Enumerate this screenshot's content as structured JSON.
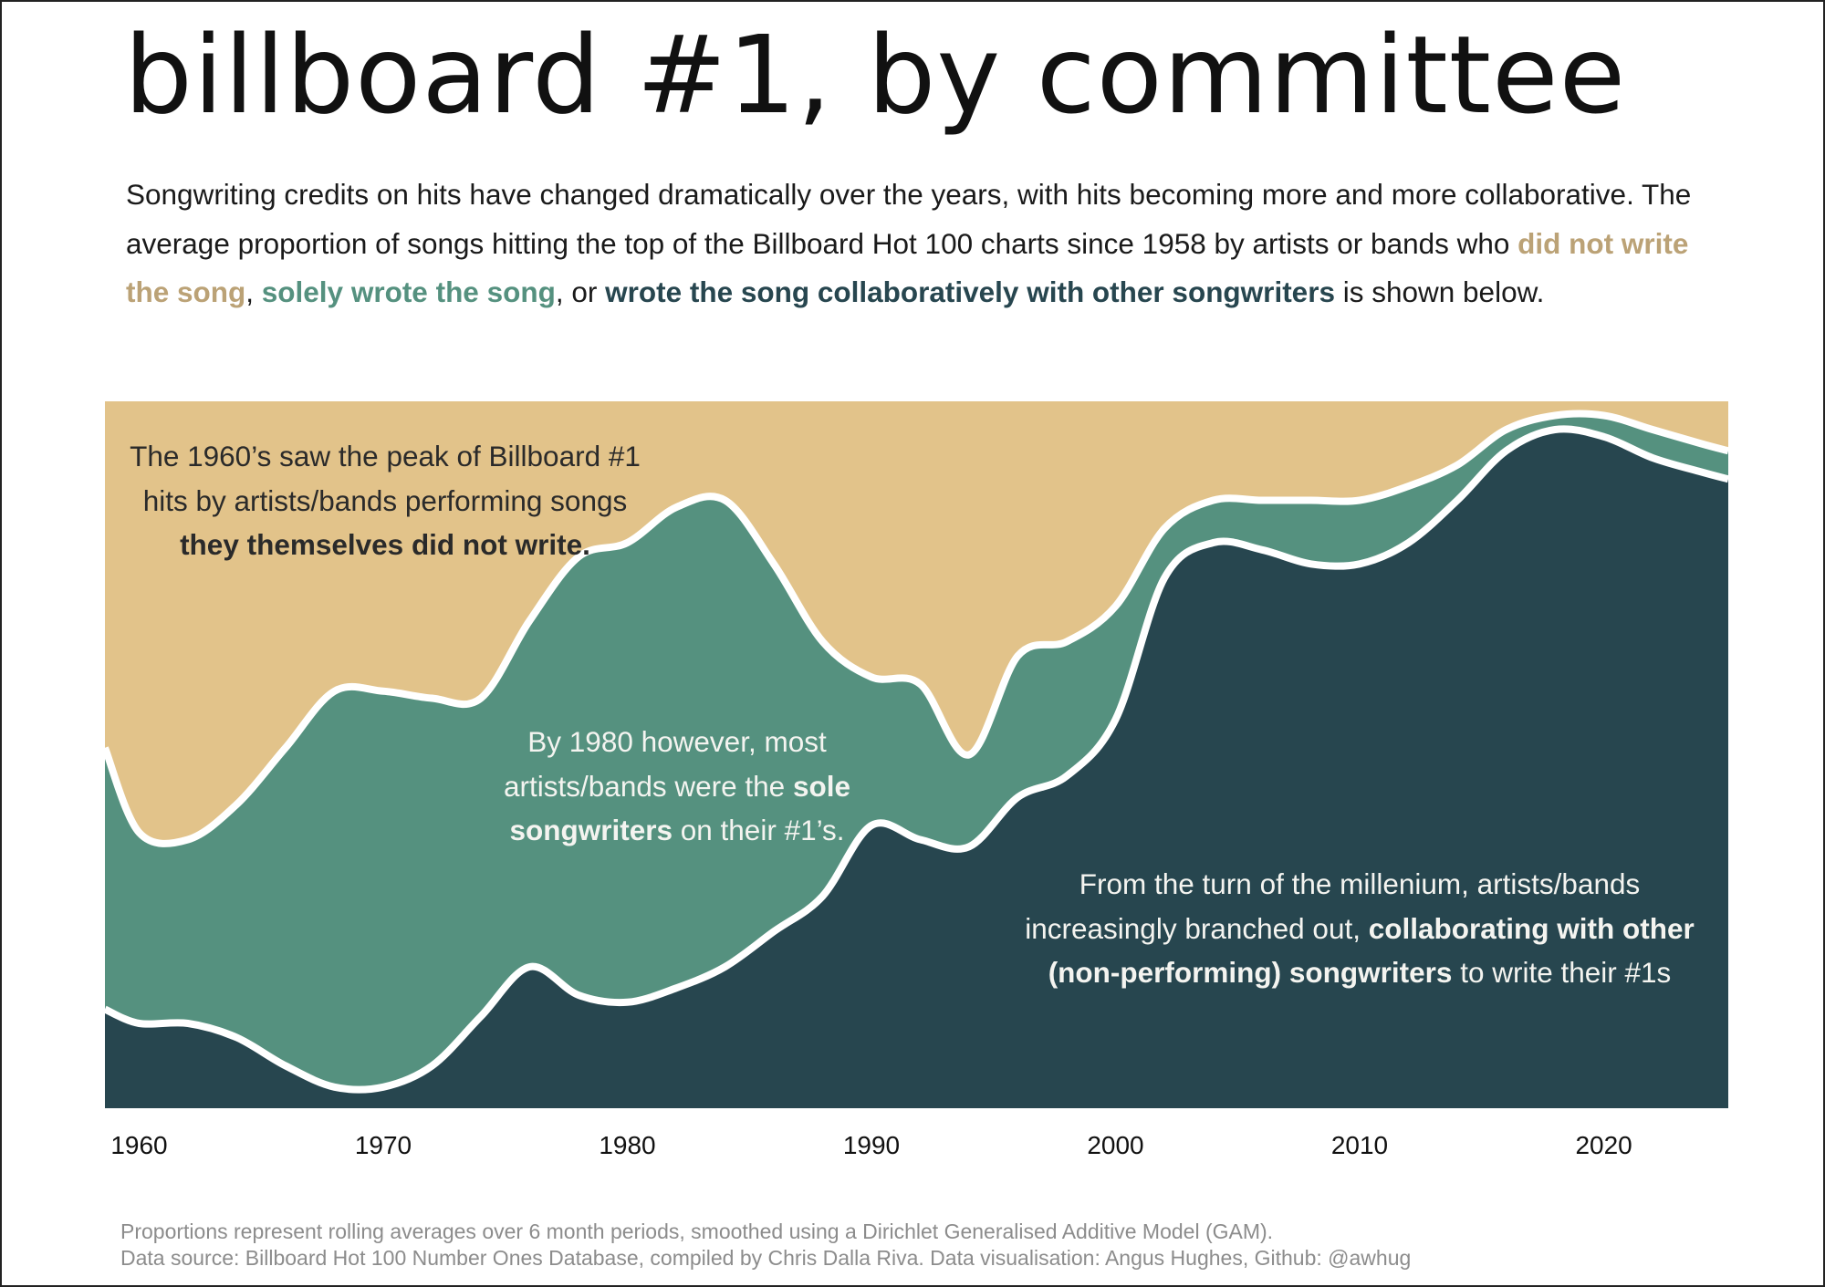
{
  "title": "billboard #1, by committee",
  "subtitle": {
    "part1": "Songwriting credits on hits have changed dramatically over the years, with hits becoming more and more collaborative. The average proportion of songs hitting the top of the Billboard Hot 100 charts since 1958 by artists or bands who ",
    "key_not_write": "did not write the song",
    "sep1": ", ",
    "key_solely": "solely wrote the song",
    "sep2": ", or ",
    "key_collab": "wrote the song collaboratively with other songwriters",
    "part2": " is shown below."
  },
  "colors": {
    "not_write": "#e2c38a",
    "not_write_text": "#bba276",
    "solely": "#55917f",
    "collab": "#27464f",
    "divider": "#ffffff"
  },
  "annotations": {
    "a": {
      "l1": "The 1960’s saw the peak of Billboard #1",
      "l2": "hits by artists/bands performing songs",
      "bold": "they themselves did not write."
    },
    "b": {
      "l1": "By 1980 however, most",
      "l2a": "artists/bands were the ",
      "bold1": "sole",
      "bold2": "songwriters",
      "l3b": " on their #1’s."
    },
    "c": {
      "l1": "From the turn of the millenium, artists/bands",
      "l2a": "increasingly branched out, ",
      "bold1": "collaborating with other",
      "bold2": "(non-performing) songwriters",
      "l3b": " to write their #1s"
    }
  },
  "chart_data": {
    "type": "area",
    "stacked": true,
    "normalized": true,
    "x_ticks": [
      1960,
      1970,
      1980,
      1990,
      2000,
      2010,
      2020
    ],
    "xlim": [
      1958.6,
      2025.1
    ],
    "ylim": [
      0,
      1
    ],
    "grid": false,
    "x": [
      1958.6,
      1960,
      1962,
      1964,
      1966,
      1968,
      1970,
      1972,
      1974,
      1976,
      1978,
      1980,
      1982,
      1984,
      1986,
      1988,
      1990,
      1992,
      1994,
      1996,
      1998,
      2000,
      2002,
      2004,
      2006,
      2008,
      2010,
      2012,
      2014,
      2016,
      2018,
      2020,
      2022,
      2024,
      2025.1
    ],
    "series": [
      {
        "key": "collab",
        "values": [
          0.14,
          0.12,
          0.12,
          0.1,
          0.06,
          0.03,
          0.03,
          0.06,
          0.13,
          0.2,
          0.16,
          0.15,
          0.17,
          0.2,
          0.25,
          0.3,
          0.4,
          0.38,
          0.37,
          0.44,
          0.47,
          0.55,
          0.75,
          0.8,
          0.79,
          0.77,
          0.77,
          0.8,
          0.86,
          0.93,
          0.96,
          0.95,
          0.92,
          0.9,
          0.89
        ]
      },
      {
        "key": "solely",
        "values": [
          0.37,
          0.27,
          0.26,
          0.33,
          0.45,
          0.56,
          0.56,
          0.52,
          0.45,
          0.49,
          0.62,
          0.65,
          0.68,
          0.66,
          0.52,
          0.36,
          0.21,
          0.22,
          0.13,
          0.2,
          0.19,
          0.16,
          0.07,
          0.06,
          0.07,
          0.09,
          0.09,
          0.08,
          0.05,
          0.03,
          0.02,
          0.03,
          0.04,
          0.04,
          0.04
        ]
      },
      {
        "key": "not_write",
        "values": [
          0.49,
          0.61,
          0.62,
          0.57,
          0.49,
          0.41,
          0.41,
          0.42,
          0.42,
          0.31,
          0.22,
          0.2,
          0.15,
          0.14,
          0.23,
          0.34,
          0.39,
          0.4,
          0.5,
          0.36,
          0.34,
          0.29,
          0.18,
          0.14,
          0.14,
          0.14,
          0.14,
          0.12,
          0.09,
          0.04,
          0.02,
          0.02,
          0.04,
          0.06,
          0.07
        ]
      }
    ]
  },
  "footnote": {
    "line1": "Proportions represent rolling averages over 6 month periods, smoothed using a Dirichlet Generalised Additive Model (GAM).",
    "line2": "Data source: Billboard Hot 100 Number Ones Database, compiled by Chris Dalla Riva. Data visualisation: Angus Hughes, Github: @awhug"
  }
}
